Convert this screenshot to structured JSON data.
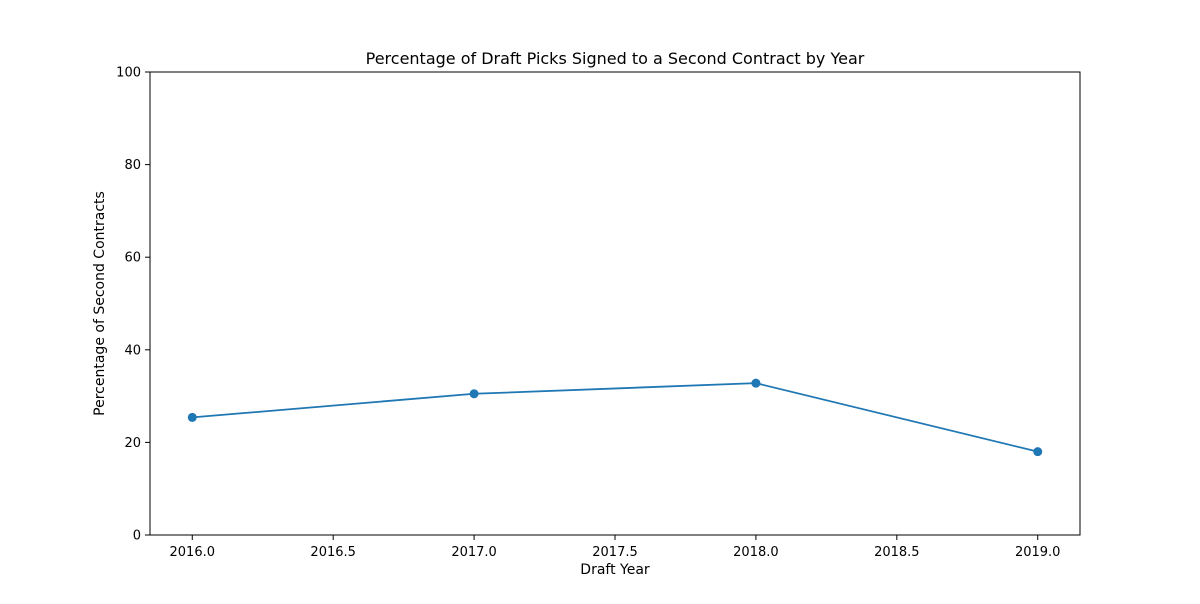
{
  "chart_data": {
    "type": "line",
    "title": "Percentage of Draft Picks Signed to a Second Contract by Year",
    "xlabel": "Draft Year",
    "ylabel": "Percentage of Second Contracts",
    "x": [
      2016,
      2017,
      2018,
      2019
    ],
    "series": [
      {
        "values": [
          25.4,
          30.5,
          32.8,
          18.0
        ],
        "color": "#1f77b4",
        "marker": "circle"
      }
    ],
    "xlim": [
      2015.85,
      2019.15
    ],
    "ylim": [
      0,
      100
    ],
    "xticks": [
      "2016.0",
      "2016.5",
      "2017.0",
      "2017.5",
      "2018.0",
      "2018.5",
      "2019.0"
    ],
    "yticks": [
      "0",
      "20",
      "40",
      "60",
      "80",
      "100"
    ],
    "grid": false,
    "legend": "none"
  }
}
